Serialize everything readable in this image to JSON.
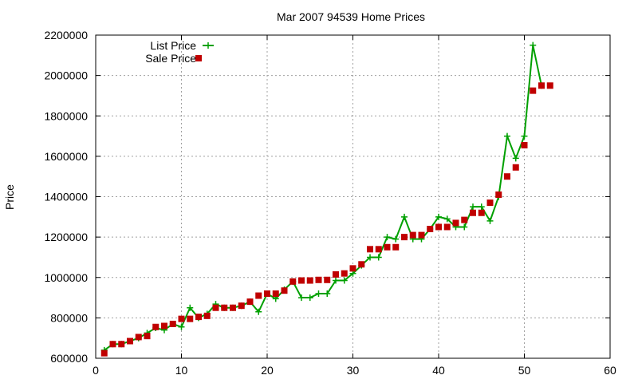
{
  "chart_data": {
    "type": "line",
    "title": "Mar 2007 94539 Home Prices",
    "xlabel": "",
    "ylabel": "Price",
    "xlim": [
      0,
      60
    ],
    "ylim": [
      600000,
      2200000
    ],
    "xticks": [
      0,
      10,
      20,
      30,
      40,
      50,
      60
    ],
    "yticks": [
      600000,
      800000,
      1000000,
      1200000,
      1400000,
      1600000,
      1800000,
      2000000,
      2200000
    ],
    "grid": true,
    "legend": "top-left",
    "series": [
      {
        "name": "List Price",
        "style": "line-with-plus",
        "color": "#00a000",
        "points": [
          [
            1,
            640000
          ],
          [
            2,
            670000
          ],
          [
            3,
            670000
          ],
          [
            4,
            685000
          ],
          [
            5,
            700000
          ],
          [
            6,
            725000
          ],
          [
            7,
            750000
          ],
          [
            8,
            740000
          ],
          [
            9,
            770000
          ],
          [
            10,
            755000
          ],
          [
            11,
            850000
          ],
          [
            12,
            800000
          ],
          [
            13,
            820000
          ],
          [
            14,
            868000
          ],
          [
            15,
            850000
          ],
          [
            16,
            850000
          ],
          [
            17,
            860000
          ],
          [
            18,
            880000
          ],
          [
            19,
            830000
          ],
          [
            20,
            920000
          ],
          [
            21,
            895000
          ],
          [
            22,
            940000
          ],
          [
            23,
            980000
          ],
          [
            24,
            900000
          ],
          [
            25,
            900000
          ],
          [
            26,
            920000
          ],
          [
            27,
            920000
          ],
          [
            28,
            985000
          ],
          [
            29,
            985000
          ],
          [
            30,
            1020000
          ],
          [
            31,
            1060000
          ],
          [
            32,
            1100000
          ],
          [
            33,
            1100000
          ],
          [
            34,
            1200000
          ],
          [
            35,
            1190000
          ],
          [
            36,
            1300000
          ],
          [
            37,
            1190000
          ],
          [
            38,
            1190000
          ],
          [
            39,
            1240000
          ],
          [
            40,
            1300000
          ],
          [
            41,
            1290000
          ],
          [
            42,
            1250000
          ],
          [
            43,
            1250000
          ],
          [
            44,
            1350000
          ],
          [
            45,
            1350000
          ],
          [
            46,
            1280000
          ],
          [
            47,
            1400000
          ],
          [
            48,
            1700000
          ],
          [
            49,
            1590000
          ],
          [
            50,
            1700000
          ],
          [
            51,
            2150000
          ],
          [
            52,
            1950000
          ]
        ]
      },
      {
        "name": "Sale Price",
        "style": "squares",
        "color": "#c00000",
        "points": [
          [
            1,
            625000
          ],
          [
            2,
            670000
          ],
          [
            3,
            670000
          ],
          [
            4,
            685000
          ],
          [
            5,
            705000
          ],
          [
            6,
            710000
          ],
          [
            7,
            755000
          ],
          [
            8,
            760000
          ],
          [
            9,
            770000
          ],
          [
            10,
            795000
          ],
          [
            11,
            795000
          ],
          [
            12,
            805000
          ],
          [
            13,
            810000
          ],
          [
            14,
            850000
          ],
          [
            15,
            850000
          ],
          [
            16,
            850000
          ],
          [
            17,
            860000
          ],
          [
            18,
            880000
          ],
          [
            19,
            910000
          ],
          [
            20,
            920000
          ],
          [
            21,
            920000
          ],
          [
            22,
            935000
          ],
          [
            23,
            980000
          ],
          [
            24,
            985000
          ],
          [
            25,
            985000
          ],
          [
            26,
            988000
          ],
          [
            27,
            988000
          ],
          [
            28,
            1015000
          ],
          [
            29,
            1020000
          ],
          [
            30,
            1045000
          ],
          [
            31,
            1065000
          ],
          [
            32,
            1140000
          ],
          [
            33,
            1140000
          ],
          [
            34,
            1150000
          ],
          [
            35,
            1150000
          ],
          [
            36,
            1200000
          ],
          [
            37,
            1210000
          ],
          [
            38,
            1210000
          ],
          [
            39,
            1240000
          ],
          [
            40,
            1250000
          ],
          [
            41,
            1250000
          ],
          [
            42,
            1270000
          ],
          [
            43,
            1285000
          ],
          [
            44,
            1320000
          ],
          [
            45,
            1320000
          ],
          [
            46,
            1370000
          ],
          [
            47,
            1410000
          ],
          [
            48,
            1500000
          ],
          [
            49,
            1545000
          ],
          [
            50,
            1655000
          ],
          [
            51,
            1925000
          ],
          [
            52,
            1950000
          ],
          [
            53,
            1950000
          ]
        ]
      }
    ]
  }
}
